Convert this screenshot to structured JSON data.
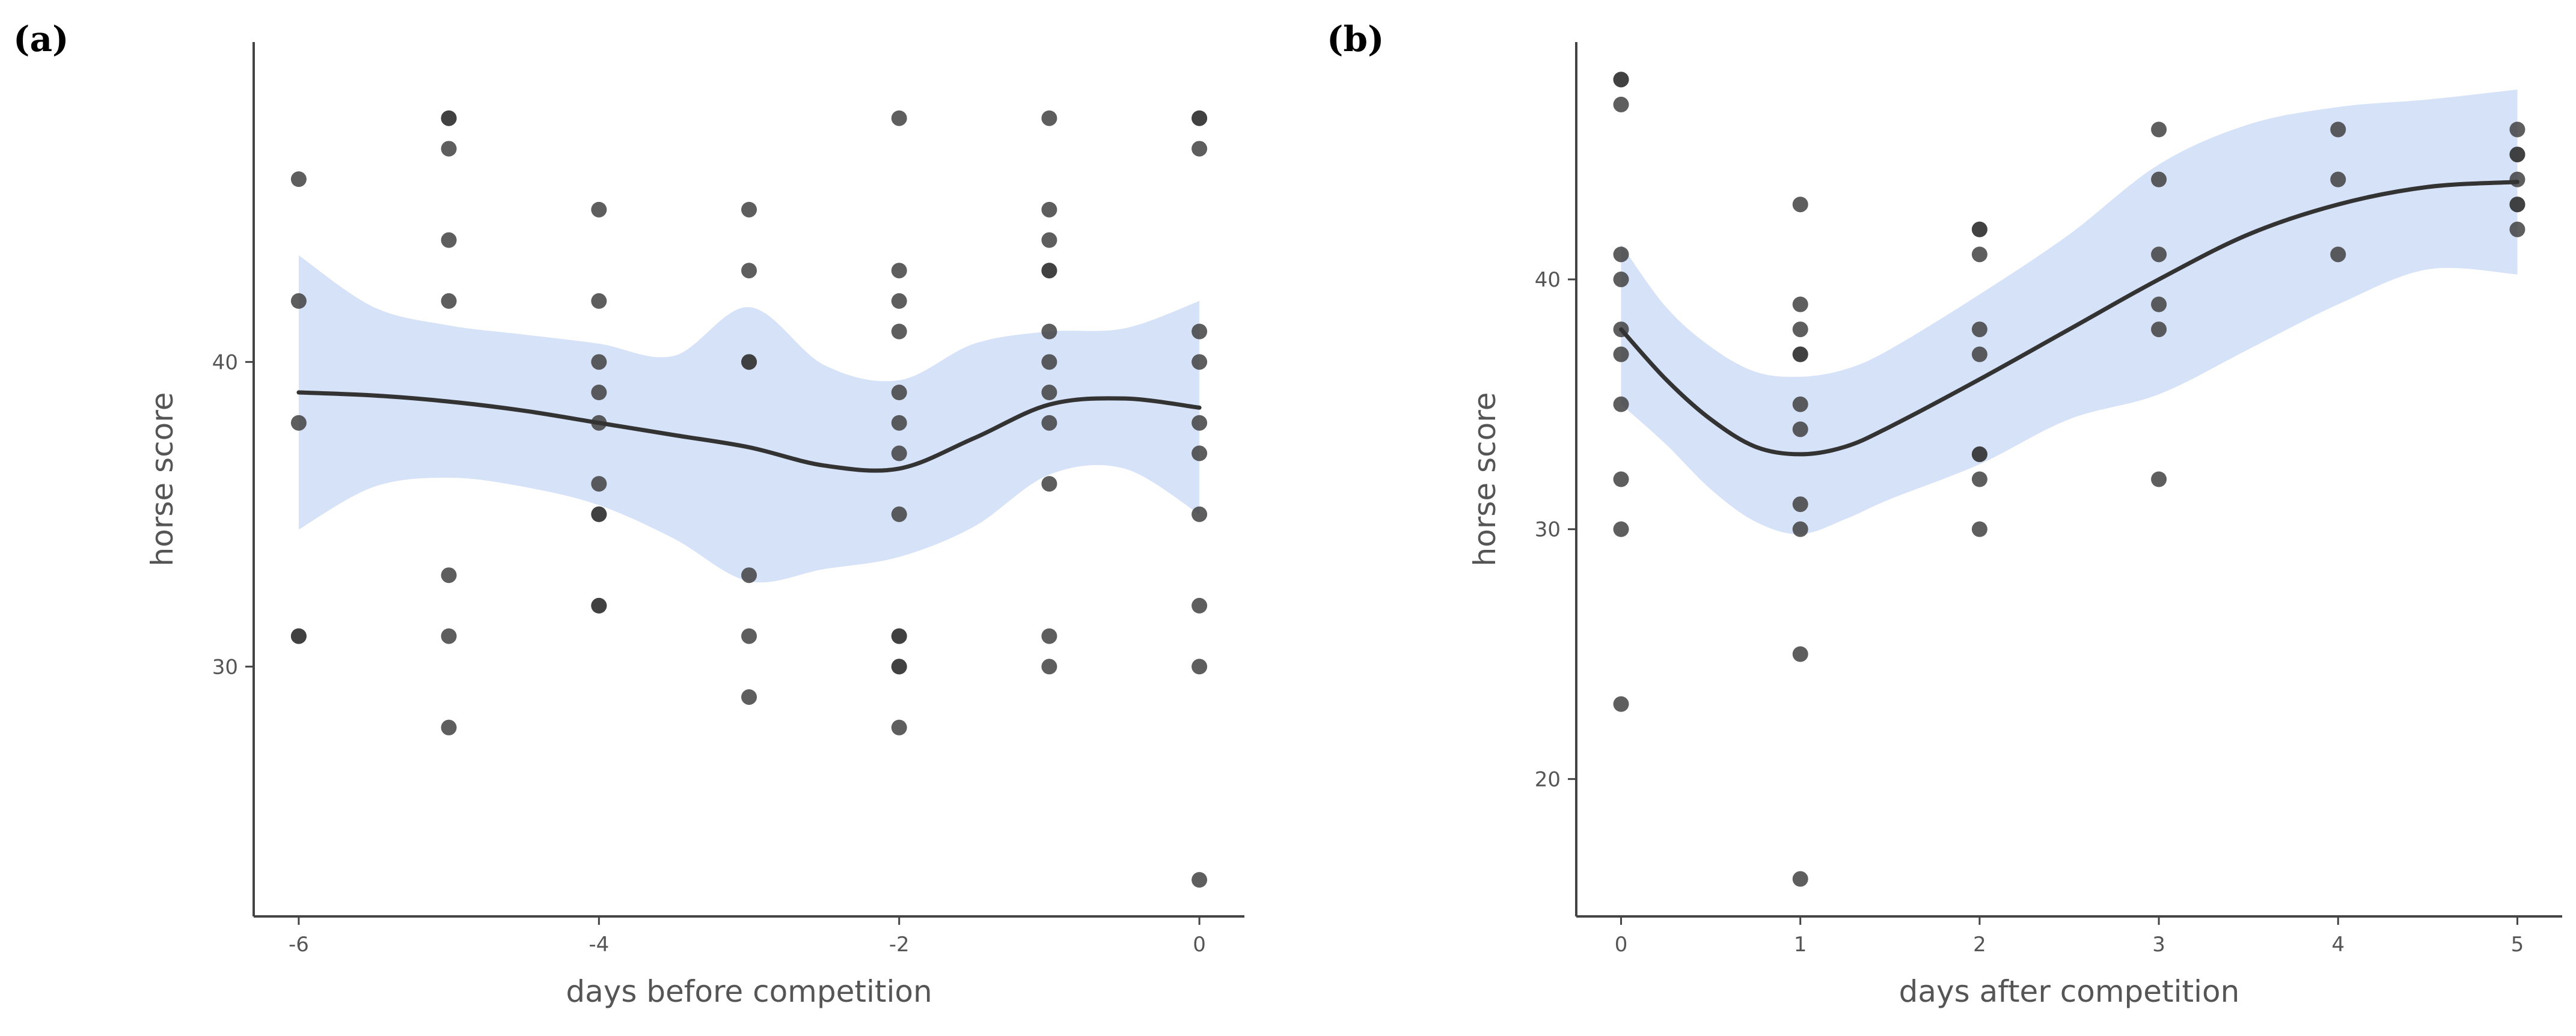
{
  "chart_data": [
    {
      "type": "scatter",
      "panel_label": "(a)",
      "xlabel": "days before competition",
      "ylabel": "horse score",
      "xlim": [
        -6.3,
        0.3
      ],
      "ylim": [
        21.8,
        50.5
      ],
      "xticks": [
        -6,
        -4,
        -2,
        0
      ],
      "yticks": [
        30,
        40
      ],
      "grid": false,
      "point_color": "#3a3a3a",
      "points": [
        {
          "x": -6,
          "y": 46
        },
        {
          "x": -6,
          "y": 42
        },
        {
          "x": -6,
          "y": 38
        },
        {
          "x": -6,
          "y": 31
        },
        {
          "x": -6,
          "y": 31
        },
        {
          "x": -5,
          "y": 48
        },
        {
          "x": -5,
          "y": 48
        },
        {
          "x": -5,
          "y": 47
        },
        {
          "x": -5,
          "y": 44
        },
        {
          "x": -5,
          "y": 42
        },
        {
          "x": -5,
          "y": 33
        },
        {
          "x": -5,
          "y": 31
        },
        {
          "x": -5,
          "y": 28
        },
        {
          "x": -4,
          "y": 45
        },
        {
          "x": -4,
          "y": 42
        },
        {
          "x": -4,
          "y": 40
        },
        {
          "x": -4,
          "y": 39
        },
        {
          "x": -4,
          "y": 38
        },
        {
          "x": -4,
          "y": 36
        },
        {
          "x": -4,
          "y": 35
        },
        {
          "x": -4,
          "y": 35
        },
        {
          "x": -4,
          "y": 32
        },
        {
          "x": -4,
          "y": 32
        },
        {
          "x": -3,
          "y": 45
        },
        {
          "x": -3,
          "y": 43
        },
        {
          "x": -3,
          "y": 40
        },
        {
          "x": -3,
          "y": 40
        },
        {
          "x": -3,
          "y": 33
        },
        {
          "x": -3,
          "y": 31
        },
        {
          "x": -3,
          "y": 29
        },
        {
          "x": -2,
          "y": 48
        },
        {
          "x": -2,
          "y": 43
        },
        {
          "x": -2,
          "y": 42
        },
        {
          "x": -2,
          "y": 41
        },
        {
          "x": -2,
          "y": 39
        },
        {
          "x": -2,
          "y": 38
        },
        {
          "x": -2,
          "y": 37
        },
        {
          "x": -2,
          "y": 35
        },
        {
          "x": -2,
          "y": 31
        },
        {
          "x": -2,
          "y": 31
        },
        {
          "x": -2,
          "y": 30
        },
        {
          "x": -2,
          "y": 30
        },
        {
          "x": -2,
          "y": 28
        },
        {
          "x": -1,
          "y": 48
        },
        {
          "x": -1,
          "y": 45
        },
        {
          "x": -1,
          "y": 44
        },
        {
          "x": -1,
          "y": 43
        },
        {
          "x": -1,
          "y": 43
        },
        {
          "x": -1,
          "y": 41
        },
        {
          "x": -1,
          "y": 40
        },
        {
          "x": -1,
          "y": 39
        },
        {
          "x": -1,
          "y": 38
        },
        {
          "x": -1,
          "y": 36
        },
        {
          "x": -1,
          "y": 31
        },
        {
          "x": -1,
          "y": 30
        },
        {
          "x": 0,
          "y": 48
        },
        {
          "x": 0,
          "y": 48
        },
        {
          "x": 0,
          "y": 47
        },
        {
          "x": 0,
          "y": 41
        },
        {
          "x": 0,
          "y": 40
        },
        {
          "x": 0,
          "y": 38
        },
        {
          "x": 0,
          "y": 37
        },
        {
          "x": 0,
          "y": 35
        },
        {
          "x": 0,
          "y": 32
        },
        {
          "x": 0,
          "y": 30
        },
        {
          "x": 0,
          "y": 23
        }
      ],
      "smooth": {
        "color": "#333333",
        "band_color": "#d6e2f7",
        "x": [
          -6,
          -5.5,
          -5,
          -4.5,
          -4,
          -3.5,
          -3,
          -2.5,
          -2,
          -1.5,
          -1,
          -0.5,
          0
        ],
        "y": [
          39.0,
          38.9,
          38.7,
          38.4,
          38.0,
          37.6,
          37.2,
          36.6,
          36.5,
          37.5,
          38.6,
          38.8,
          38.5
        ],
        "lower": [
          34.5,
          35.9,
          36.2,
          35.9,
          35.3,
          34.2,
          32.8,
          33.2,
          33.6,
          34.6,
          36.3,
          36.5,
          35.0
        ],
        "upper": [
          43.5,
          41.8,
          41.2,
          40.9,
          40.6,
          40.2,
          41.8,
          39.9,
          39.4,
          40.6,
          41.0,
          41.1,
          42.0
        ]
      }
    },
    {
      "type": "scatter",
      "panel_label": "(b)",
      "xlabel": "days after competition",
      "ylabel": "horse score",
      "xlim": [
        -0.25,
        5.25
      ],
      "ylim": [
        14.5,
        49.5
      ],
      "xticks": [
        0,
        1,
        2,
        3,
        4,
        5
      ],
      "yticks": [
        20,
        30,
        40
      ],
      "grid": false,
      "point_color": "#3a3a3a",
      "points": [
        {
          "x": 0,
          "y": 48
        },
        {
          "x": 0,
          "y": 48
        },
        {
          "x": 0,
          "y": 47
        },
        {
          "x": 0,
          "y": 41
        },
        {
          "x": 0,
          "y": 40
        },
        {
          "x": 0,
          "y": 38
        },
        {
          "x": 0,
          "y": 37
        },
        {
          "x": 0,
          "y": 35
        },
        {
          "x": 0,
          "y": 32
        },
        {
          "x": 0,
          "y": 30
        },
        {
          "x": 0,
          "y": 23
        },
        {
          "x": 1,
          "y": 43
        },
        {
          "x": 1,
          "y": 39
        },
        {
          "x": 1,
          "y": 38
        },
        {
          "x": 1,
          "y": 37
        },
        {
          "x": 1,
          "y": 37
        },
        {
          "x": 1,
          "y": 35
        },
        {
          "x": 1,
          "y": 34
        },
        {
          "x": 1,
          "y": 31
        },
        {
          "x": 1,
          "y": 30
        },
        {
          "x": 1,
          "y": 25
        },
        {
          "x": 1,
          "y": 16
        },
        {
          "x": 2,
          "y": 42
        },
        {
          "x": 2,
          "y": 42
        },
        {
          "x": 2,
          "y": 41
        },
        {
          "x": 2,
          "y": 38
        },
        {
          "x": 2,
          "y": 37
        },
        {
          "x": 2,
          "y": 33
        },
        {
          "x": 2,
          "y": 33
        },
        {
          "x": 2,
          "y": 32
        },
        {
          "x": 2,
          "y": 30
        },
        {
          "x": 3,
          "y": 46
        },
        {
          "x": 3,
          "y": 44
        },
        {
          "x": 3,
          "y": 41
        },
        {
          "x": 3,
          "y": 39
        },
        {
          "x": 3,
          "y": 38
        },
        {
          "x": 3,
          "y": 32
        },
        {
          "x": 4,
          "y": 46
        },
        {
          "x": 4,
          "y": 44
        },
        {
          "x": 4,
          "y": 41
        },
        {
          "x": 5,
          "y": 46
        },
        {
          "x": 5,
          "y": 45
        },
        {
          "x": 5,
          "y": 45
        },
        {
          "x": 5,
          "y": 44
        },
        {
          "x": 5,
          "y": 43
        },
        {
          "x": 5,
          "y": 43
        },
        {
          "x": 5,
          "y": 42
        }
      ],
      "smooth": {
        "color": "#333333",
        "band_color": "#d6e2f7",
        "x": [
          0,
          0.25,
          0.5,
          0.75,
          1,
          1.25,
          1.5,
          2,
          2.5,
          3,
          3.5,
          4,
          4.5,
          5
        ],
        "y": [
          38.0,
          36.0,
          34.4,
          33.3,
          33.0,
          33.3,
          34.1,
          36.0,
          38.0,
          40.0,
          41.8,
          43.0,
          43.7,
          43.9
        ],
        "lower": [
          35.0,
          33.4,
          31.6,
          30.3,
          29.8,
          30.4,
          31.2,
          32.6,
          34.4,
          35.4,
          37.2,
          39.0,
          40.4,
          40.2
        ],
        "upper": [
          41.4,
          38.9,
          37.3,
          36.3,
          36.1,
          36.4,
          37.2,
          39.4,
          41.8,
          44.6,
          46.2,
          46.9,
          47.2,
          47.6
        ]
      }
    }
  ]
}
